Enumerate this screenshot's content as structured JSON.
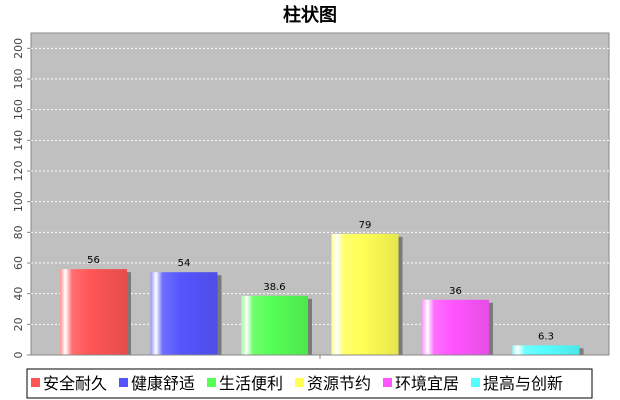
{
  "chart_data": {
    "type": "bar",
    "title": "柱状图",
    "categories": [
      "安全耐久",
      "健康舒适",
      "生活便利",
      "资源节约",
      "环境宜居",
      "提高与创新"
    ],
    "values": [
      56,
      54,
      38.6,
      79,
      36,
      6.3
    ],
    "value_labels": [
      "56",
      "54",
      "38.6",
      "79",
      "36",
      "6.3"
    ],
    "colors": [
      "#ff5555",
      "#5555ff",
      "#55ff55",
      "#ffff55",
      "#ff55ff",
      "#55ffff"
    ],
    "ylim": [
      0,
      210
    ],
    "yticks": [
      0,
      20,
      40,
      60,
      80,
      100,
      120,
      140,
      160,
      180,
      200
    ],
    "ytick_labels": [
      "0",
      "20",
      "40",
      "60",
      "80",
      "100",
      "120",
      "140",
      "160",
      "180",
      "200"
    ],
    "xlabel": "",
    "ylabel": "",
    "grid": true,
    "legend": "bottom",
    "plot_background": "#c0c0c0"
  }
}
